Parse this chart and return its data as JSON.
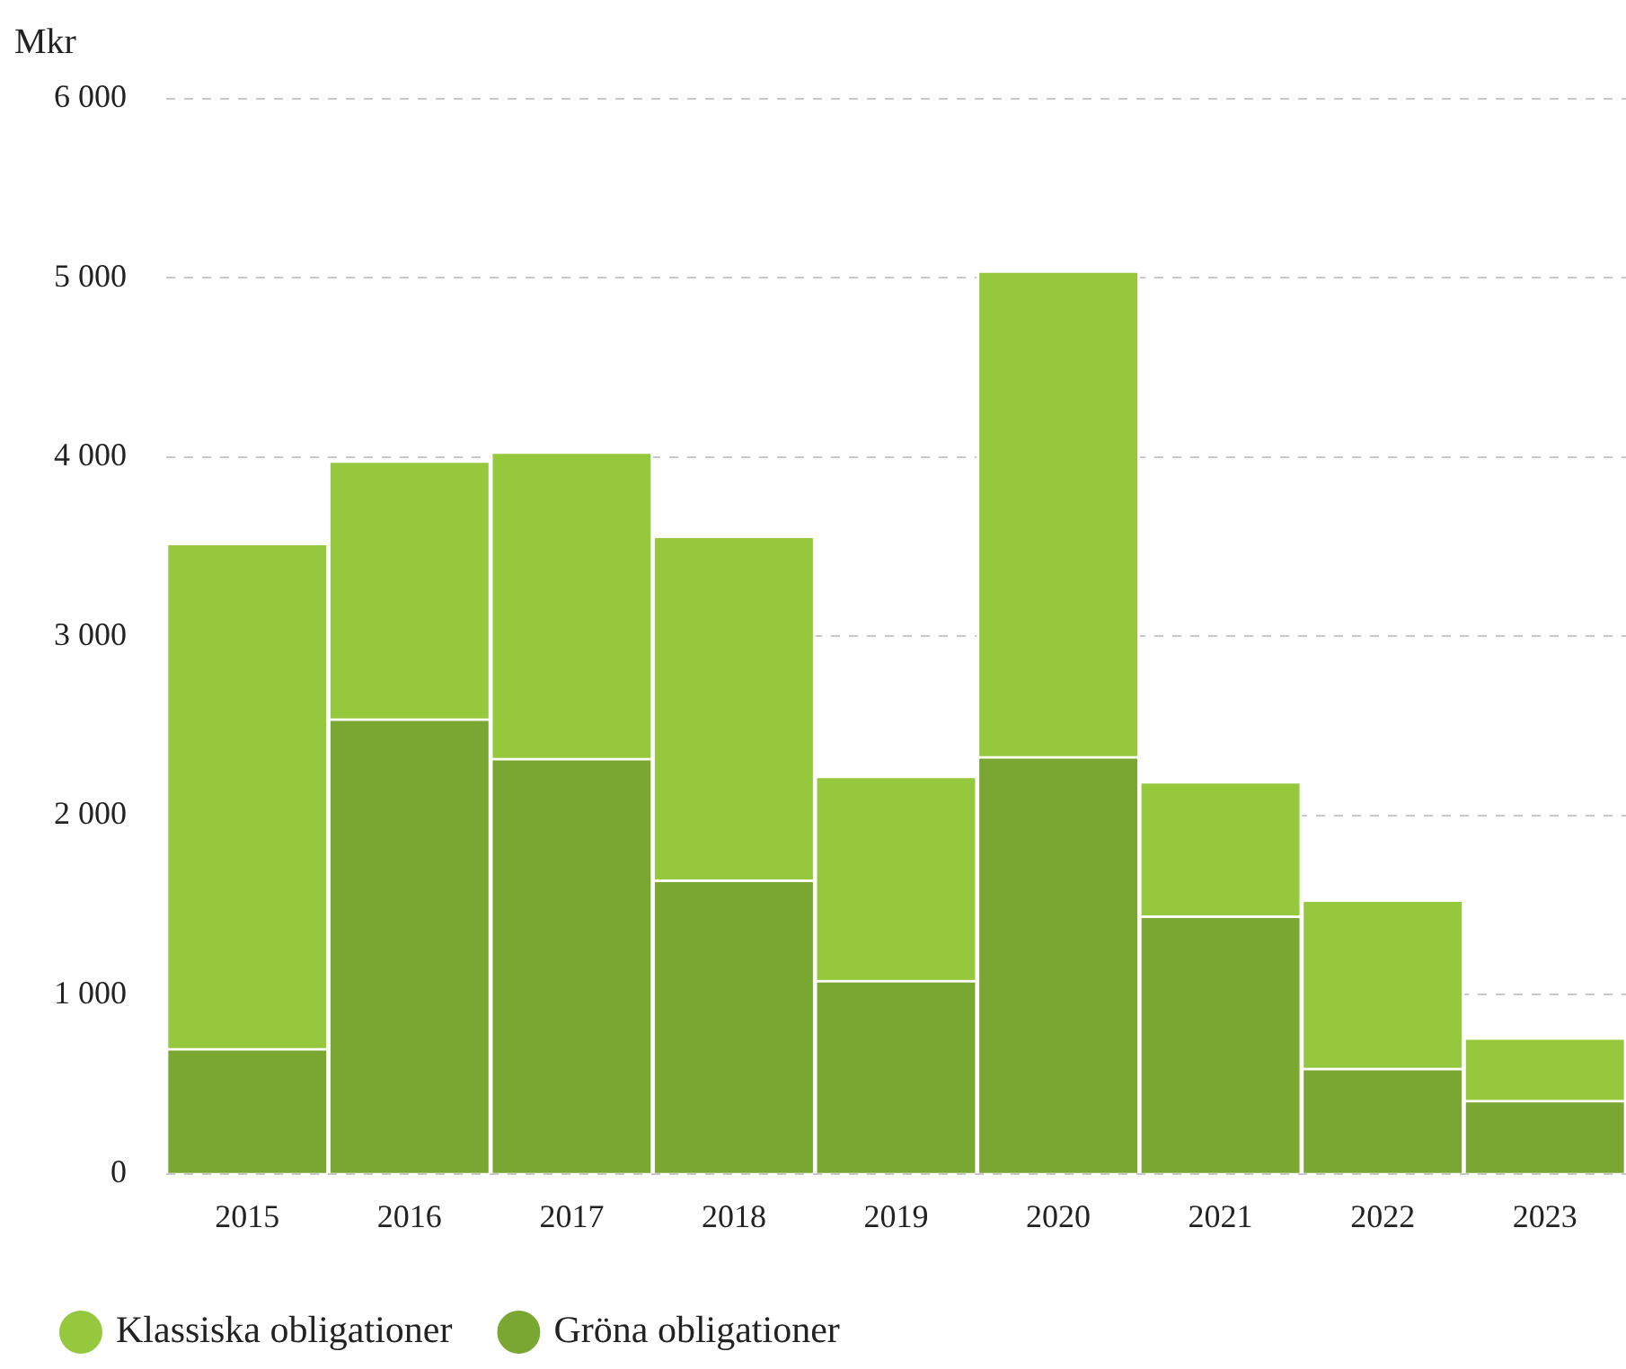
{
  "chart_data": {
    "type": "bar",
    "stacked": true,
    "ylabel": "Mkr",
    "categories": [
      "2015",
      "2016",
      "2017",
      "2018",
      "2019",
      "2020",
      "2021",
      "2022",
      "2023"
    ],
    "series": [
      {
        "name": "Gröna obligationer",
        "color": "#7aa632",
        "values": [
          700,
          2540,
          2320,
          1640,
          1080,
          2330,
          1440,
          590,
          410
        ]
      },
      {
        "name": "Klassiska obligationer",
        "color": "#95c83d",
        "values": [
          2820,
          1440,
          1710,
          1920,
          1140,
          2710,
          750,
          940,
          350
        ]
      }
    ],
    "ylim": [
      0,
      6000
    ],
    "yticks": [
      0,
      {
        "value": 1000,
        "label": "1 000"
      },
      {
        "value": 2000,
        "label": "2 000"
      },
      {
        "value": 3000,
        "label": "3 000"
      },
      {
        "value": 4000,
        "label": "4 000"
      },
      {
        "value": 5000,
        "label": "5 000"
      },
      {
        "value": 6000,
        "label": "6 000"
      }
    ],
    "grid": "y",
    "legend": "bottom left"
  }
}
